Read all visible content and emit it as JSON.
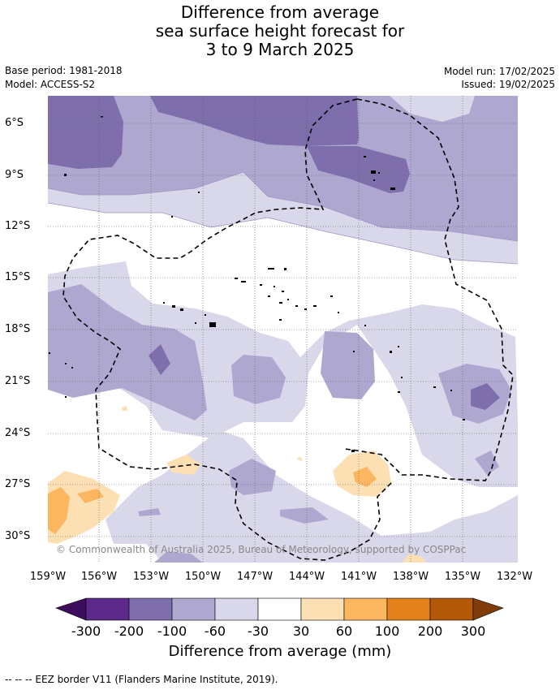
{
  "title_lines": [
    "Difference from average",
    "sea surface height forecast for",
    "3 to 9 March 2025"
  ],
  "meta": {
    "base_period": "Base period: 1981-2018",
    "model": "Model: ACCESS-S2",
    "model_run": "Model run: 17/02/2025",
    "issued": "Issued: 19/02/2025"
  },
  "axes": {
    "lat_labels": [
      "6°S",
      "9°S",
      "12°S",
      "15°S",
      "18°S",
      "21°S",
      "24°S",
      "27°S",
      "30°S"
    ],
    "lon_labels": [
      "159°W",
      "156°W",
      "153°W",
      "150°W",
      "147°W",
      "144°W",
      "141°W",
      "138°W",
      "135°W",
      "132°W"
    ]
  },
  "copyright": "© Commonwealth of Australia 2025, Bureau of Meteorology, supported by COSPPac",
  "colorbar": {
    "label": "Difference from average (mm)",
    "ticks": [
      "-300",
      "-200",
      "-100",
      "-60",
      "-30",
      "30",
      "60",
      "100",
      "200",
      "300"
    ],
    "colors": [
      "#3f0d5e",
      "#5b2a8a",
      "#7e6eab",
      "#aea8d1",
      "#d8d8ea",
      "#ffffff",
      "#fddfb4",
      "#fbb65f",
      "#e4811a",
      "#b35806",
      "#7f3b08"
    ]
  },
  "footnote": "--  --  -- EEZ border V11 (Flanders Marine Institute, 2019).",
  "legend_colors": {
    "dark_purple": "#7e6eab",
    "mid_purple": "#aea8d1",
    "light_purple": "#d8d8ea",
    "light_orange": "#fddfb4",
    "mid_orange": "#fbb65f"
  }
}
